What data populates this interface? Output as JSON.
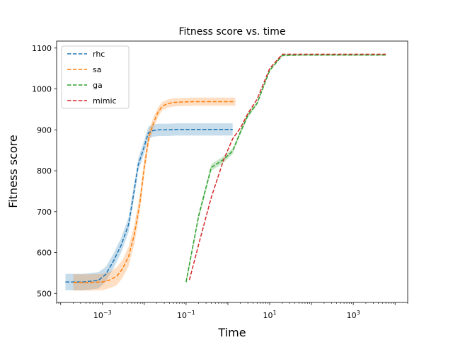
{
  "chart_data": {
    "type": "line",
    "title": "Fitness score vs. time",
    "xlabel": "Time",
    "ylabel": "Fitness score",
    "xscale": "log",
    "xlim": [
      8e-05,
      20000
    ],
    "ylim": [
      478,
      1117
    ],
    "x_ticks": [
      {
        "value": 0.001,
        "base": "10",
        "exp": "−3"
      },
      {
        "value": 0.1,
        "base": "10",
        "exp": "−1"
      },
      {
        "value": 10,
        "base": "10",
        "exp": "1"
      },
      {
        "value": 1000,
        "base": "10",
        "exp": "3"
      }
    ],
    "y_ticks": [
      500,
      600,
      700,
      800,
      900,
      1000,
      1100
    ],
    "legend_position": "top-left",
    "grid": false,
    "series": [
      {
        "name": "rhc",
        "color": "#1f77b4",
        "x": [
          0.00013,
          0.00035,
          0.0008,
          0.0012,
          0.0018,
          0.0028,
          0.0042,
          0.0055,
          0.0072,
          0.0095,
          0.0125,
          0.016,
          0.022,
          0.035,
          0.06,
          0.1,
          0.2,
          0.5,
          1.3
        ],
        "y": [
          528,
          528,
          532,
          547,
          578,
          618,
          668,
          740,
          815,
          852,
          893,
          898,
          900,
          900,
          901,
          901,
          901,
          901,
          901
        ],
        "band": [
          20,
          20,
          20,
          18,
          18,
          18,
          18,
          18,
          16,
          16,
          15,
          15,
          15,
          15,
          15,
          15,
          15,
          15,
          15
        ]
      },
      {
        "name": "sa",
        "color": "#ff7f0e",
        "x": [
          0.0002,
          0.0005,
          0.001,
          0.0015,
          0.0022,
          0.003,
          0.0042,
          0.0058,
          0.0078,
          0.01,
          0.013,
          0.017,
          0.021,
          0.027,
          0.036,
          0.05,
          0.08,
          0.15,
          0.4,
          1.5
        ],
        "y": [
          527,
          527,
          528,
          533,
          542,
          560,
          590,
          645,
          720,
          808,
          885,
          920,
          942,
          958,
          964,
          967,
          968,
          969,
          969,
          969
        ],
        "band": [
          20,
          20,
          20,
          20,
          22,
          22,
          24,
          24,
          22,
          20,
          16,
          14,
          12,
          10,
          10,
          10,
          10,
          10,
          10,
          10
        ]
      },
      {
        "name": "ga",
        "color": "#2ca02c",
        "x": [
          0.1,
          0.2,
          0.4,
          0.8,
          1.3,
          2,
          3,
          5,
          10,
          20,
          50,
          200,
          1000,
          6000
        ],
        "y": [
          528,
          690,
          808,
          828,
          848,
          895,
          935,
          965,
          1045,
          1082,
          1083,
          1083,
          1083,
          1083
        ],
        "band": [
          8,
          8,
          8,
          8,
          7,
          6,
          5,
          4,
          3,
          2,
          2,
          2,
          2,
          2
        ]
      },
      {
        "name": "mimic",
        "color": "#d62728",
        "x": [
          0.12,
          0.2,
          0.4,
          0.8,
          1.3,
          2,
          3,
          5,
          10,
          20,
          50,
          200,
          1000,
          6000
        ],
        "y": [
          533,
          620,
          735,
          828,
          878,
          905,
          940,
          975,
          1050,
          1085,
          1085,
          1085,
          1085,
          1085
        ],
        "band": [
          0,
          0,
          0,
          0,
          0,
          0,
          0,
          0,
          0,
          0,
          0,
          0,
          0,
          0
        ]
      }
    ]
  }
}
